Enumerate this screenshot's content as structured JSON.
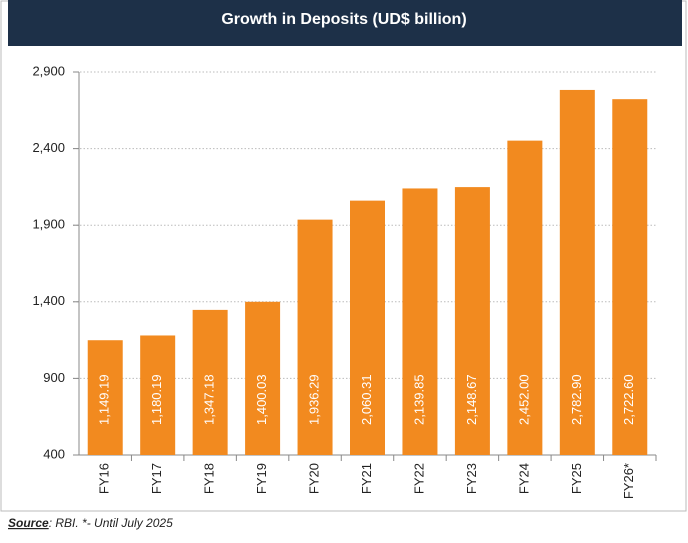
{
  "chart_data": {
    "type": "bar",
    "title": "Growth in Deposits (UD$ billion)",
    "categories": [
      "FY16",
      "FY17",
      "FY18",
      "FY19",
      "FY20",
      "FY21",
      "FY22",
      "FY23",
      "FY24",
      "FY25",
      "FY26*"
    ],
    "values": [
      1149.19,
      1180.19,
      1347.18,
      1400.03,
      1936.29,
      2060.31,
      2139.85,
      2148.67,
      2452.0,
      2782.9,
      2722.6
    ],
    "value_labels": [
      "1,149.19",
      "1,180.19",
      "1,347.18",
      "1,400.03",
      "1,936.29",
      "2,060.31",
      "2,139.85",
      "2,148.67",
      "2,452.00",
      "2,782.90",
      "2,722.60"
    ],
    "color": "#f28a1f",
    "ylim": [
      400,
      2900
    ],
    "yticks": [
      400,
      900,
      {
        "value": 1400,
        "label": "1,400"
      },
      {
        "value": 1900,
        "label": "1,900"
      },
      {
        "value": 2400,
        "label": "2,400"
      },
      {
        "value": 2900,
        "label": "2,900"
      }
    ],
    "grid": true,
    "source_label": "Source",
    "source_text": ": RBI. *- Until July 2025"
  }
}
